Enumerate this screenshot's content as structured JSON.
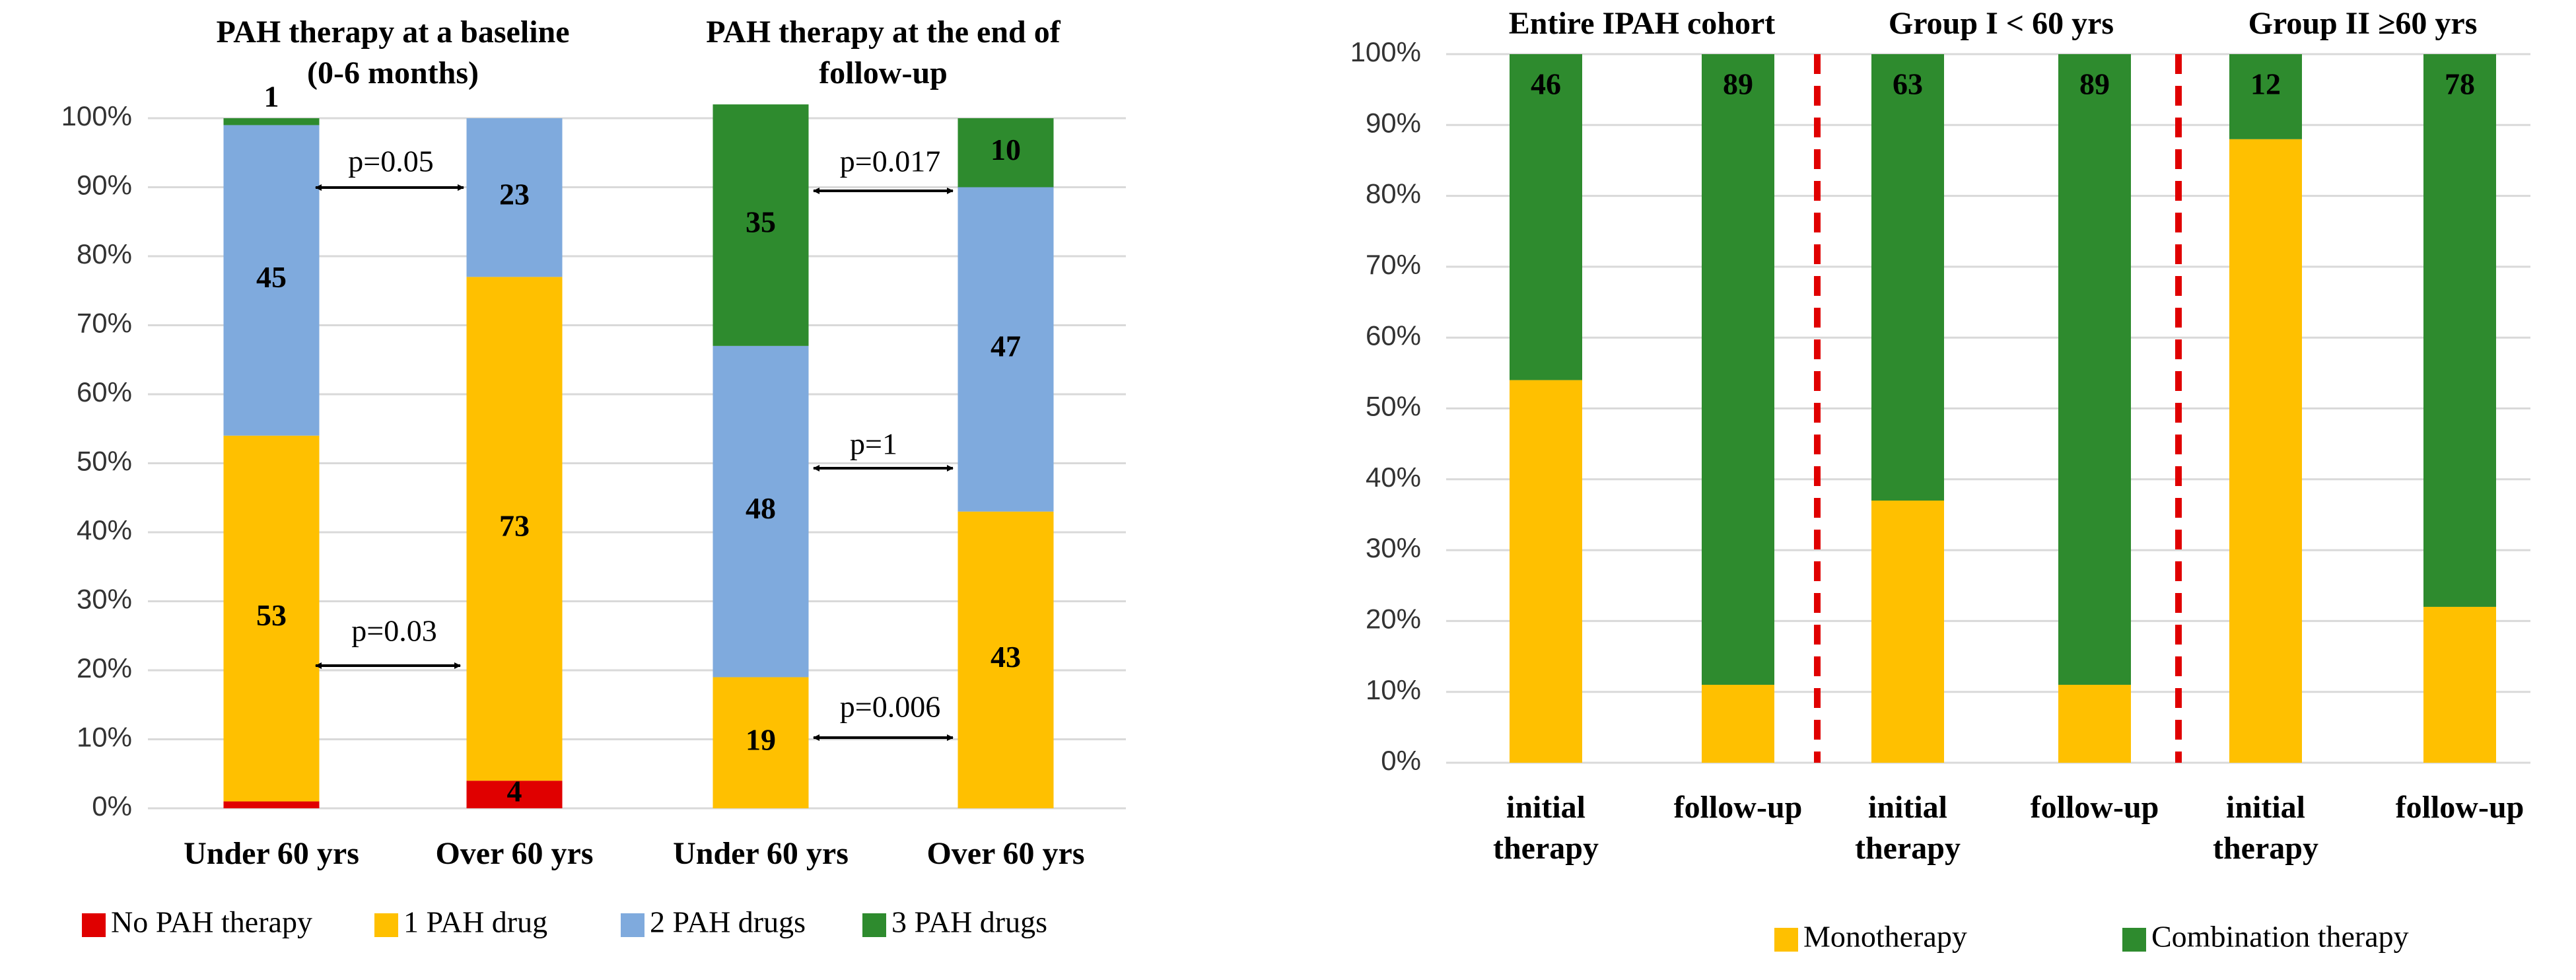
{
  "chart_data": [
    {
      "type": "bar",
      "stacked": true,
      "groups": [
        "PAH therapy at a baseline (0-6 months)",
        "PAH therapy at the end of follow-up"
      ],
      "categories": [
        "Under 60 yrs",
        "Over 60 yrs",
        "Under 60 yrs",
        "Over 60 yrs"
      ],
      "series": [
        {
          "name": "No PAH therapy",
          "color": "#e00000",
          "labels": true,
          "values": [
            1,
            4,
            null,
            null
          ]
        },
        {
          "name": "1 PAH drug",
          "color": "#ffc000",
          "labels": true,
          "values": [
            53,
            73,
            19,
            43
          ]
        },
        {
          "name": "2 PAH drugs",
          "color": "#7faadd",
          "labels": true,
          "values": [
            45,
            23,
            48,
            47
          ]
        },
        {
          "name": "3 PAH drugs",
          "color": "#2e8b2e",
          "labels": true,
          "values": [
            1,
            null,
            35,
            10
          ]
        }
      ],
      "ylim": [
        0,
        100
      ],
      "yticks": [
        {
          "value": 0,
          "label": "0%"
        },
        {
          "value": 10,
          "label": "10%"
        },
        {
          "value": 20,
          "label": "20%"
        },
        {
          "value": 30,
          "label": "30%"
        },
        {
          "value": 40,
          "label": "40%"
        },
        {
          "value": 50,
          "label": "50%"
        },
        {
          "value": 60,
          "label": "60%"
        },
        {
          "value": 70,
          "label": "70%"
        },
        {
          "value": 80,
          "label": "80%"
        },
        {
          "value": 90,
          "label": "90%"
        },
        {
          "value": 100,
          "label": "100%"
        }
      ],
      "grid": true,
      "legend": "bottom",
      "annotations": [
        "p=0.05",
        "p=0.03",
        "p=0.017",
        "p=1",
        "p=0.006"
      ]
    },
    {
      "type": "bar",
      "stacked": true,
      "groups": [
        "Entire IPAH cohort",
        "Group I < 60 yrs",
        "Group II ≥60 yrs"
      ],
      "categories": [
        "initial therapy",
        "follow-up",
        "initial therapy",
        "follow-up",
        "initial therapy",
        "follow-up"
      ],
      "series": [
        {
          "name": "Monotherapy",
          "color": "#ffc000",
          "labels": false,
          "values": [
            54,
            11,
            37,
            11,
            88,
            22
          ]
        },
        {
          "name": "Combination therapy",
          "color": "#2e8b2e",
          "labels": true,
          "values": [
            46,
            89,
            63,
            89,
            12,
            78
          ]
        }
      ],
      "ylim": [
        0,
        100
      ],
      "yticks": [
        {
          "value": 0,
          "label": "0%"
        },
        {
          "value": 10,
          "label": "10%"
        },
        {
          "value": 20,
          "label": "20%"
        },
        {
          "value": 30,
          "label": "30%"
        },
        {
          "value": 40,
          "label": "40%"
        },
        {
          "value": 50,
          "label": "50%"
        },
        {
          "value": 60,
          "label": "60%"
        },
        {
          "value": 70,
          "label": "70%"
        },
        {
          "value": 80,
          "label": "80%"
        },
        {
          "value": 90,
          "label": "90%"
        },
        {
          "value": 100,
          "label": "100%"
        }
      ],
      "grid": true,
      "legend": "bottom"
    }
  ]
}
